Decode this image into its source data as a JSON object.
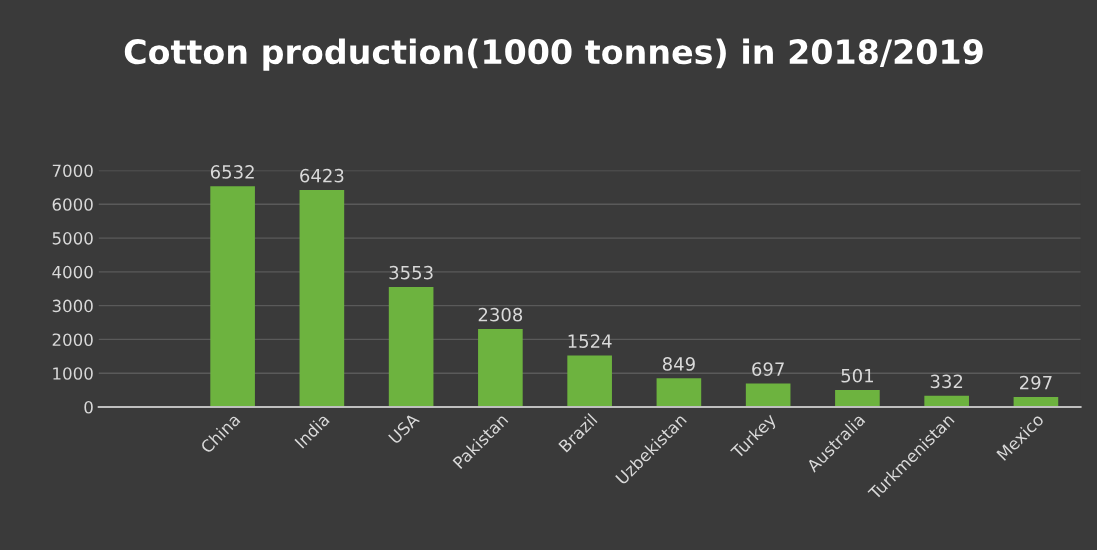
{
  "chart_data": {
    "type": "bar",
    "title": "Cotton production(1000 tonnes) in 2018/2019",
    "categories": [
      null,
      "China",
      "India",
      "USA",
      "Pakistan",
      "Brazil",
      "Uzbekistan",
      "Turkey",
      "Australia",
      "Turkmenistan",
      "Mexico"
    ],
    "values": [
      null,
      6532,
      6423,
      3553,
      2308,
      1524,
      849,
      697,
      501,
      332,
      297
    ],
    "color": "#6db33f",
    "ylim": [
      0,
      7000
    ],
    "yticks": [
      0,
      1000,
      2000,
      3000,
      4000,
      5000,
      6000,
      7000
    ],
    "grid": "y",
    "data_labels": true
  }
}
